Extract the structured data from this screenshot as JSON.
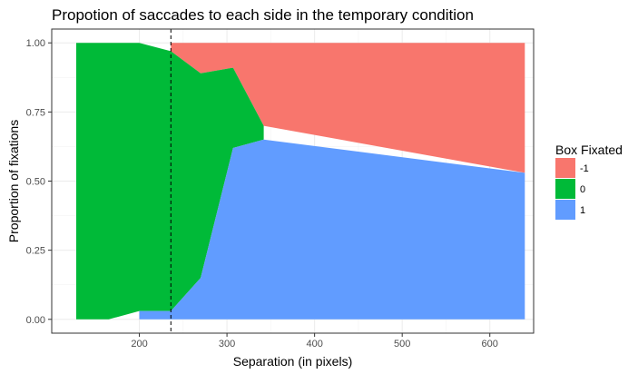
{
  "chart_data": {
    "type": "area",
    "title": "Propotion of saccades to each side in the temporary condition",
    "xlabel": "Separation (in pixels)",
    "ylabel": "Proportion of fixations",
    "xlim": [
      100,
      650
    ],
    "ylim": [
      -0.05,
      1.05
    ],
    "x_ticks": [
      200,
      300,
      400,
      500,
      600
    ],
    "y_ticks": [
      0.0,
      0.25,
      0.5,
      0.75,
      1.0
    ],
    "y_tick_labels": [
      "0.00",
      "0.25",
      "0.50",
      "0.75",
      "1.00"
    ],
    "grid": true,
    "legend_title": "Box Fixated",
    "legend_position": "right",
    "reference_line": {
      "x": 236,
      "style": "dashed"
    },
    "series": [
      {
        "name": "-1",
        "color": "#F8766D",
        "points": [
          {
            "x": 236,
            "low": 0.97,
            "high": 1.0
          },
          {
            "x": 270,
            "low": 0.89,
            "high": 1.0
          },
          {
            "x": 307,
            "low": 0.91,
            "high": 1.0
          },
          {
            "x": 342,
            "low": 0.7,
            "high": 1.0
          },
          {
            "x": 640,
            "low": 0.53,
            "high": 1.0
          }
        ]
      },
      {
        "name": "0",
        "color": "#00BA38",
        "points": [
          {
            "x": 128,
            "low": 0.0,
            "high": 1.0
          },
          {
            "x": 165,
            "low": 0.0,
            "high": 1.0
          },
          {
            "x": 200,
            "low": 0.03,
            "high": 1.0
          },
          {
            "x": 236,
            "low": 0.03,
            "high": 0.97
          },
          {
            "x": 270,
            "low": 0.15,
            "high": 0.89
          },
          {
            "x": 307,
            "low": 0.62,
            "high": 0.91
          },
          {
            "x": 342,
            "low": 0.65,
            "high": 0.7
          }
        ]
      },
      {
        "name": "1",
        "color": "#619CFF",
        "points": [
          {
            "x": 200,
            "low": 0.0,
            "high": 0.03
          },
          {
            "x": 236,
            "low": 0.0,
            "high": 0.03
          },
          {
            "x": 270,
            "low": 0.0,
            "high": 0.15
          },
          {
            "x": 307,
            "low": 0.0,
            "high": 0.62
          },
          {
            "x": 342,
            "low": 0.0,
            "high": 0.65
          },
          {
            "x": 640,
            "low": 0.0,
            "high": 0.53
          }
        ]
      }
    ]
  }
}
